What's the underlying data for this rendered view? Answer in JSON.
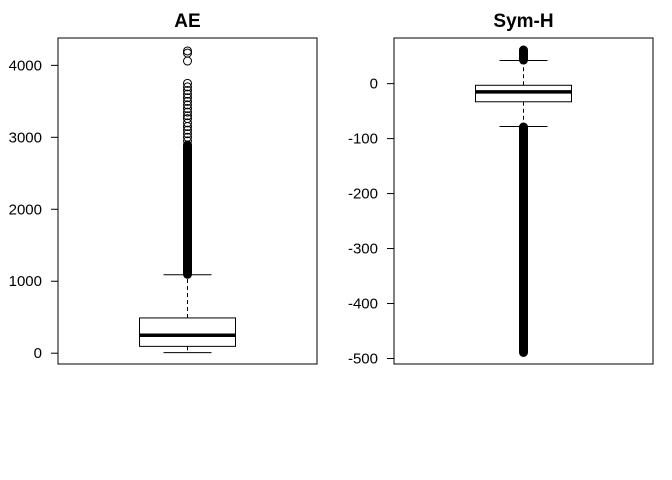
{
  "chart_data": [
    {
      "type": "boxplot",
      "title": "AE",
      "xlabel": "",
      "ylabel": "",
      "ylim": [
        -150,
        4380
      ],
      "yticks": [
        0,
        1000,
        2000,
        3000,
        4000
      ],
      "box": {
        "min_whisker": 8,
        "q1": 95,
        "median": 250,
        "q3": 490,
        "max_whisker": 1090
      },
      "outliers": {
        "dense_range": [
          1090,
          2900
        ],
        "points": [
          2950,
          3000,
          3050,
          3100,
          3150,
          3200,
          3260,
          3300,
          3350,
          3400,
          3450,
          3500,
          3550,
          3600,
          3650,
          3700,
          3750,
          4060,
          4170,
          4200
        ]
      }
    },
    {
      "type": "boxplot",
      "title": "Sym-H",
      "xlabel": "",
      "ylabel": "",
      "ylim": [
        -510,
        83
      ],
      "yticks": [
        -500,
        -400,
        -300,
        -200,
        -100,
        0
      ],
      "box": {
        "min_whisker": -78,
        "q1": -33,
        "median": -15,
        "q3": -3,
        "max_whisker": 42
      },
      "outliers": {
        "dense_range_low": [
          -490,
          -78
        ],
        "dense_range_high": [
          42,
          62
        ],
        "points": []
      }
    }
  ]
}
